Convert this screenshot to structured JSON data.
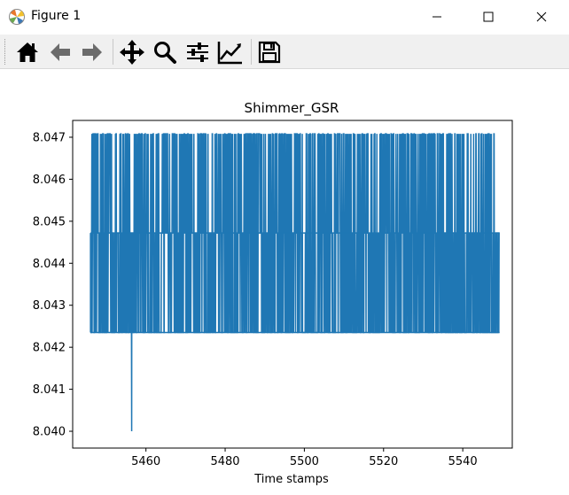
{
  "window": {
    "title": "Figure 1",
    "app_icon": "matplotlib-logo-icon",
    "controls": [
      "minimize-icon",
      "maximize-icon",
      "close-icon"
    ]
  },
  "toolbar": {
    "buttons": [
      {
        "name": "home-button",
        "icon": "home-icon"
      },
      {
        "name": "back-button",
        "icon": "arrow-left-icon"
      },
      {
        "name": "forward-button",
        "icon": "arrow-right-icon"
      },
      {
        "name": "pan-button",
        "icon": "move-icon"
      },
      {
        "name": "zoom-button",
        "icon": "magnifier-icon"
      },
      {
        "name": "subplots-button",
        "icon": "sliders-icon"
      },
      {
        "name": "edit-axes-button",
        "icon": "line-chart-icon"
      },
      {
        "name": "save-button",
        "icon": "floppy-disk-icon"
      }
    ]
  },
  "chart_data": {
    "type": "line",
    "title": "Shimmer_GSR",
    "xlabel": "Time stamps",
    "ylabel": "",
    "xlim": [
      5441.5,
      5552.5
    ],
    "ylim": [
      8.0396,
      8.0474
    ],
    "xticks": [
      "5460",
      "5480",
      "5500",
      "5520",
      "5540"
    ],
    "xtick_values": [
      5460,
      5480,
      5500,
      5520,
      5540
    ],
    "yticks": [
      "8.040",
      "8.041",
      "8.042",
      "8.043",
      "8.044",
      "8.045",
      "8.046",
      "8.047"
    ],
    "ytick_values": [
      8.04,
      8.041,
      8.042,
      8.043,
      8.044,
      8.045,
      8.046,
      8.047
    ],
    "levels": [
      8.04235,
      8.04472,
      8.04708
    ],
    "x_start": 5446.0,
    "x_end": 5549.3,
    "upper_level_end": 5548.1,
    "outlier": {
      "x": 5456.4,
      "y": 8.04
    },
    "grid": false,
    "color": "#1f77b4"
  }
}
